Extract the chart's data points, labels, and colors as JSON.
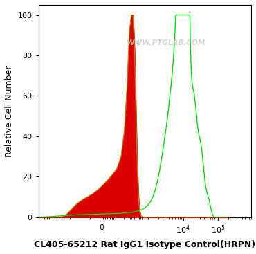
{
  "title": "CL405-65212 Rat IgG1 Isotype Control(HRPN)",
  "ylabel": "Relative Cell Number",
  "ylim": [
    0,
    105
  ],
  "yticks": [
    0,
    20,
    40,
    60,
    80,
    100
  ],
  "watermark": "WWW.PTGLAB.COM",
  "background_color": "#ffffff",
  "red_fill_color": "#dd0000",
  "red_line_color": "#bb8800",
  "green_line_color": "#00dd00",
  "title_fontsize": 9,
  "ylabel_fontsize": 9,
  "tick_fontsize": 8,
  "linthresh": 100,
  "linscale": 0.3
}
